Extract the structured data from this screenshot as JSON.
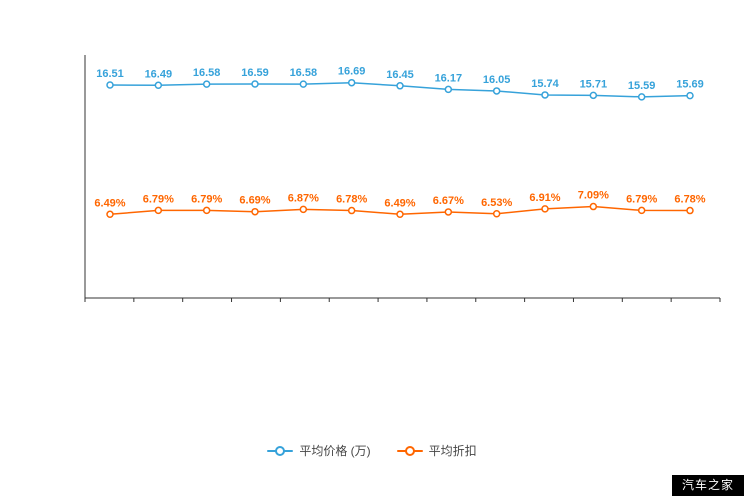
{
  "page": {
    "background": "#ffffff"
  },
  "watermark": {
    "text": "汽车之家",
    "bg": "#000000",
    "fg": "#ffffff"
  },
  "chart_data": {
    "type": "line",
    "title": "",
    "xlabel": "",
    "ylabel": "",
    "ylim": [
      0,
      20
    ],
    "grid": false,
    "legend_position": "bottom",
    "axis_color": "#333333",
    "point_count": 13,
    "series": [
      {
        "name": "平均价格 (万)",
        "color": "#36a2da",
        "values": [
          16.51,
          16.49,
          16.58,
          16.59,
          16.58,
          16.69,
          16.45,
          16.17,
          16.05,
          15.74,
          15.71,
          15.59,
          15.69
        ],
        "labels": [
          "16.51",
          "16.49",
          "16.58",
          "16.59",
          "16.58",
          "16.69",
          "16.45",
          "16.17",
          "16.05",
          "15.74",
          "15.71",
          "15.59",
          "15.69"
        ]
      },
      {
        "name": "平均折扣",
        "color": "#ff6600",
        "values": [
          6.49,
          6.79,
          6.79,
          6.69,
          6.87,
          6.78,
          6.49,
          6.67,
          6.53,
          6.91,
          7.09,
          6.79,
          6.78
        ],
        "labels": [
          "6.49%",
          "6.79%",
          "6.79%",
          "6.69%",
          "6.87%",
          "6.78%",
          "6.49%",
          "6.67%",
          "6.53%",
          "6.91%",
          "7.09%",
          "6.79%",
          "6.78%"
        ]
      }
    ]
  }
}
